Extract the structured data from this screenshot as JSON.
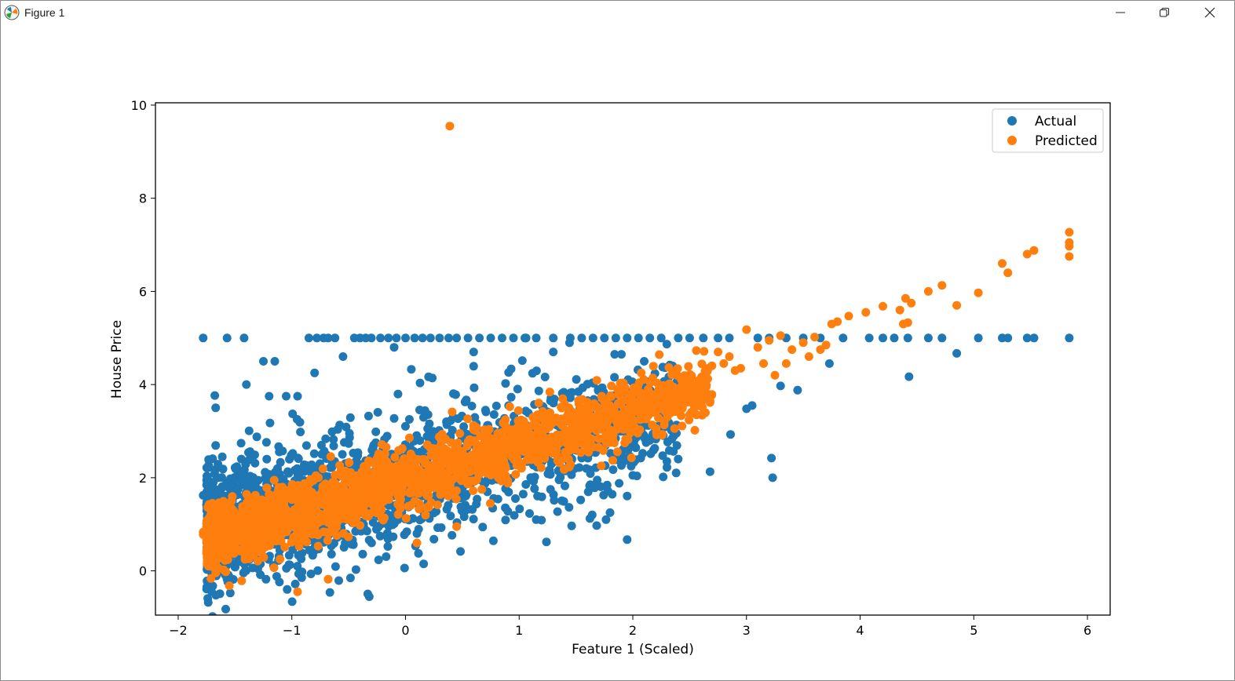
{
  "window": {
    "title": "Figure 1",
    "icons": {
      "app": "matplotlib-icon",
      "minimize": "minimize-icon",
      "maximize": "restore-icon",
      "close": "close-icon"
    }
  },
  "chart_data": {
    "type": "scatter",
    "title": "",
    "xlabel": "Feature 1 (Scaled)",
    "ylabel": "House Price",
    "xlim": [
      -2.2,
      6.2
    ],
    "ylim": [
      -0.95,
      10.05
    ],
    "x_ticks": [
      -2,
      -1,
      0,
      1,
      2,
      3,
      4,
      5,
      6
    ],
    "x_tick_labels": [
      "−2",
      "−1",
      "0",
      "1",
      "2",
      "3",
      "4",
      "5",
      "6"
    ],
    "y_ticks": [
      0,
      2,
      4,
      6,
      8,
      10
    ],
    "y_tick_labels": [
      "0",
      "2",
      "4",
      "6",
      "8",
      "10"
    ],
    "grid": false,
    "legend_position": "top-right",
    "colors": {
      "Actual": "#1f77b4",
      "Predicted": "#ff7f0e"
    },
    "series": [
      {
        "name": "Actual",
        "color": "#1f77b4",
        "points": [
          [
            -1.78,
            5.0
          ],
          [
            -1.57,
            5.0
          ],
          [
            -1.42,
            5.0
          ],
          [
            -0.85,
            5.0
          ],
          [
            -0.78,
            5.0
          ],
          [
            -0.72,
            5.0
          ],
          [
            -0.68,
            5.0
          ],
          [
            -0.62,
            5.0
          ],
          [
            -0.45,
            5.0
          ],
          [
            -0.4,
            5.0
          ],
          [
            -0.35,
            5.0
          ],
          [
            -0.3,
            5.0
          ],
          [
            -0.22,
            5.0
          ],
          [
            -0.15,
            5.0
          ],
          [
            -0.08,
            5.0
          ],
          [
            0.0,
            5.0
          ],
          [
            0.08,
            5.0
          ],
          [
            0.15,
            5.0
          ],
          [
            0.22,
            5.0
          ],
          [
            0.3,
            5.0
          ],
          [
            0.38,
            5.0
          ],
          [
            0.45,
            5.0
          ],
          [
            0.55,
            5.0
          ],
          [
            0.65,
            5.0
          ],
          [
            0.75,
            5.0
          ],
          [
            0.85,
            5.0
          ],
          [
            0.95,
            5.0
          ],
          [
            1.05,
            5.0
          ],
          [
            1.15,
            5.0
          ],
          [
            1.3,
            5.0
          ],
          [
            1.45,
            5.0
          ],
          [
            1.55,
            5.0
          ],
          [
            1.65,
            5.0
          ],
          [
            1.75,
            5.0
          ],
          [
            1.85,
            5.0
          ],
          [
            1.95,
            5.0
          ],
          [
            2.05,
            5.0
          ],
          [
            2.15,
            5.0
          ],
          [
            2.25,
            5.0
          ],
          [
            2.4,
            5.0
          ],
          [
            2.5,
            5.0
          ],
          [
            2.62,
            5.0
          ],
          [
            2.75,
            5.0
          ],
          [
            2.85,
            5.0
          ],
          [
            3.1,
            5.0
          ],
          [
            3.2,
            5.0
          ],
          [
            3.35,
            5.0
          ],
          [
            3.5,
            5.0
          ],
          [
            3.65,
            5.0
          ],
          [
            3.85,
            5.0
          ],
          [
            4.08,
            5.0
          ],
          [
            4.2,
            5.0
          ],
          [
            4.3,
            5.0
          ],
          [
            4.42,
            5.0
          ],
          [
            4.6,
            5.0
          ],
          [
            4.72,
            5.0
          ],
          [
            5.04,
            5.0
          ],
          [
            5.25,
            5.0
          ],
          [
            5.3,
            5.0
          ],
          [
            5.47,
            5.0
          ],
          [
            5.53,
            5.0
          ],
          [
            5.84,
            5.0
          ],
          [
            -1.67,
            3.5
          ],
          [
            -1.4,
            4.0
          ],
          [
            -1.25,
            4.5
          ],
          [
            -1.15,
            4.5
          ],
          [
            -1.2,
            3.75
          ],
          [
            -1.05,
            3.75
          ],
          [
            -0.95,
            3.75
          ],
          [
            -0.8,
            4.25
          ],
          [
            -0.55,
            4.6
          ],
          [
            -0.1,
            4.8
          ],
          [
            0.6,
            4.7
          ],
          [
            1.3,
            4.7
          ],
          [
            1.9,
            4.65
          ],
          [
            2.1,
            4.5
          ],
          [
            2.35,
            4.4
          ],
          [
            3.73,
            4.45
          ],
          [
            4.43,
            4.17
          ],
          [
            4.85,
            4.67
          ],
          [
            3.45,
            3.88
          ],
          [
            3.3,
            3.97
          ],
          [
            3.05,
            3.55
          ],
          [
            3.0,
            3.48
          ],
          [
            2.86,
            2.93
          ],
          [
            2.68,
            2.13
          ],
          [
            3.22,
            2.42
          ],
          [
            3.23,
            2.0
          ],
          [
            2.3,
            2.35
          ],
          [
            1.95,
            0.67
          ],
          [
            1.8,
            1.25
          ],
          [
            1.78,
            1.72
          ],
          [
            1.88,
            1.88
          ],
          [
            2.0,
            2.05
          ],
          [
            2.07,
            2.42
          ],
          [
            2.15,
            2.8
          ],
          [
            2.2,
            3.1
          ],
          [
            -1.78,
            1.62
          ],
          [
            -1.65,
            2.0
          ],
          [
            -1.6,
            1.35
          ],
          [
            -1.5,
            1.05
          ],
          [
            -0.5,
            2.0
          ],
          [
            0.1,
            0.8
          ],
          [
            0.16,
            0.15
          ],
          [
            0.25,
            0.68
          ],
          [
            1.15,
            1.1
          ],
          [
            0.9,
            1.28
          ],
          [
            1.35,
            2.35
          ],
          [
            1.55,
            2.42
          ]
        ],
        "clusters": [
          {
            "x": [
              -1.75,
              2.4
            ],
            "slope": 0.63,
            "intercept": 1.95,
            "spread": 0.72,
            "count": 1800
          }
        ]
      },
      {
        "name": "Predicted",
        "color": "#ff7f0e",
        "points": [
          [
            0.39,
            9.55
          ],
          [
            -1.55,
            -0.32
          ],
          [
            -0.95,
            -0.45
          ],
          [
            -0.68,
            -0.18
          ],
          [
            -1.78,
            0.78
          ],
          [
            -1.78,
            0.83
          ],
          [
            -1.7,
            1.45
          ],
          [
            -1.6,
            0.02
          ],
          [
            0.1,
            0.6
          ],
          [
            0.45,
            0.95
          ],
          [
            3.0,
            5.18
          ],
          [
            3.1,
            4.8
          ],
          [
            3.2,
            4.95
          ],
          [
            3.3,
            5.05
          ],
          [
            3.4,
            4.75
          ],
          [
            3.5,
            4.9
          ],
          [
            3.6,
            5.02
          ],
          [
            3.7,
            4.85
          ],
          [
            3.75,
            5.3
          ],
          [
            3.8,
            5.35
          ],
          [
            3.9,
            5.47
          ],
          [
            4.05,
            5.55
          ],
          [
            4.2,
            5.68
          ],
          [
            4.35,
            5.6
          ],
          [
            4.4,
            5.85
          ],
          [
            4.45,
            5.75
          ],
          [
            4.6,
            6.0
          ],
          [
            4.72,
            6.13
          ],
          [
            4.85,
            5.7
          ],
          [
            5.04,
            5.97
          ],
          [
            5.25,
            6.6
          ],
          [
            5.3,
            6.4
          ],
          [
            5.47,
            6.8
          ],
          [
            5.53,
            6.88
          ],
          [
            5.84,
            7.27
          ],
          [
            5.84,
            7.05
          ],
          [
            5.84,
            6.97
          ],
          [
            5.84,
            6.75
          ],
          [
            4.42,
            5.33
          ],
          [
            4.38,
            5.3
          ],
          [
            3.65,
            4.75
          ],
          [
            3.55,
            4.6
          ],
          [
            3.35,
            4.45
          ],
          [
            3.25,
            4.2
          ],
          [
            3.15,
            4.45
          ],
          [
            2.95,
            4.35
          ],
          [
            2.85,
            4.6
          ],
          [
            2.8,
            4.45
          ],
          [
            2.75,
            4.7
          ],
          [
            2.9,
            4.3
          ],
          [
            2.65,
            4.1
          ],
          [
            2.6,
            3.6
          ]
        ],
        "clusters": [
          {
            "x": [
              -1.75,
              2.7
            ],
            "slope": 0.74,
            "intercept": 1.95,
            "spread": 0.32,
            "count": 2200
          }
        ]
      }
    ]
  }
}
